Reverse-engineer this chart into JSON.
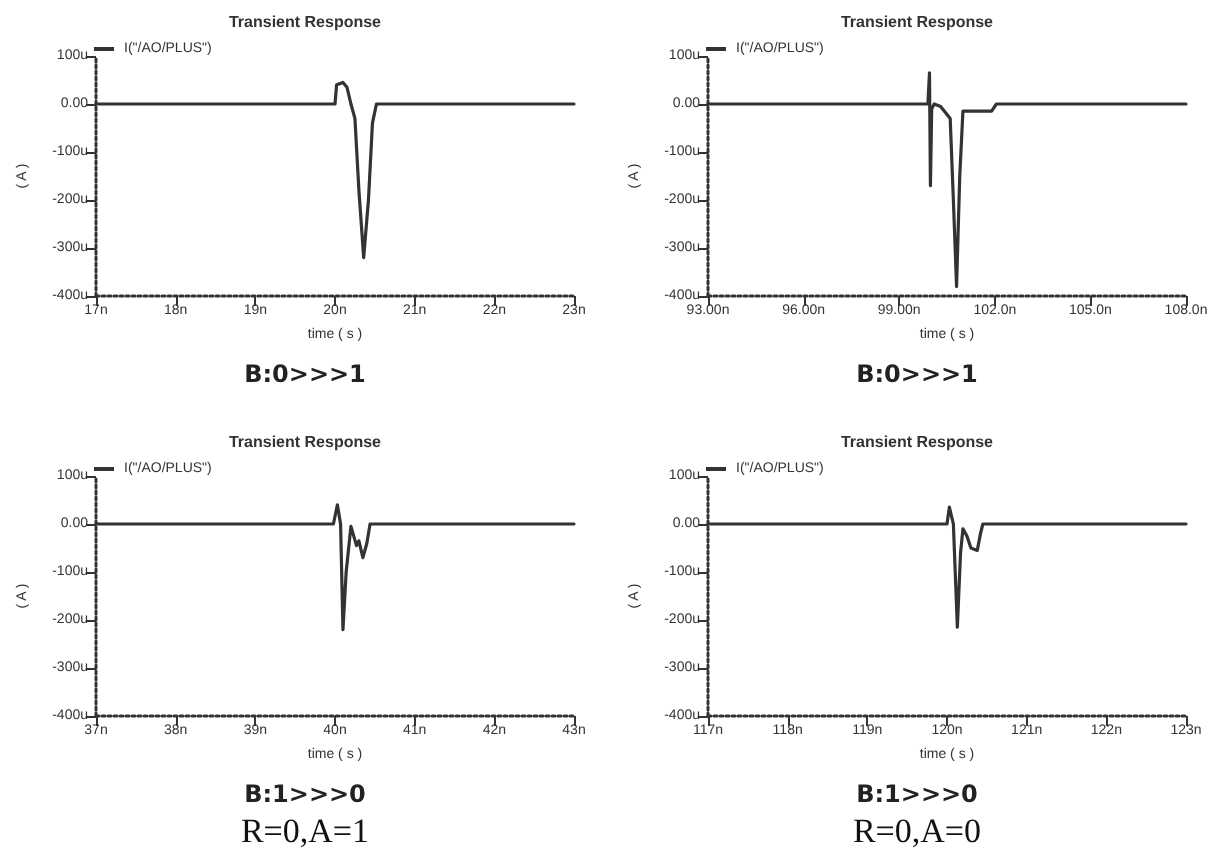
{
  "chart_data": [
    {
      "type": "line",
      "title": "Transient Response",
      "xlabel": "time ( s )",
      "ylabel": "( A )",
      "legend": "top left",
      "line_style": "solid",
      "xlim": [
        17,
        23
      ],
      "xticks": [
        {
          "value": 17,
          "label": "17n"
        },
        {
          "value": 18,
          "label": "18n"
        },
        {
          "value": 19,
          "label": "19n"
        },
        {
          "value": 20,
          "label": "20n"
        },
        {
          "value": 21,
          "label": "21n"
        },
        {
          "value": 22,
          "label": "22n"
        },
        {
          "value": 23,
          "label": "23n"
        }
      ],
      "ylim": [
        -400,
        100
      ],
      "yticks": [
        {
          "value": 100,
          "label": "100u"
        },
        {
          "value": 0,
          "label": "0.00"
        },
        {
          "value": -100,
          "label": "-100u"
        },
        {
          "value": -200,
          "label": "-200u"
        },
        {
          "value": -300,
          "label": "-300u"
        },
        {
          "value": -400,
          "label": "-400u"
        }
      ],
      "series": [
        {
          "name": "I(\"/AO/PLUS\")",
          "color": "#333333",
          "x": [
            17,
            20,
            20.02,
            20.1,
            20.15,
            20.2,
            20.25,
            20.3,
            20.36,
            20.42,
            20.47,
            20.52,
            23
          ],
          "values": [
            0,
            0,
            40,
            45,
            35,
            0,
            -30,
            -180,
            -320,
            -200,
            -40,
            0,
            0
          ]
        }
      ],
      "annotations": [
        "B:0>>>1"
      ]
    },
    {
      "type": "line",
      "title": "Transient Response",
      "xlabel": "time ( s )",
      "ylabel": "( A )",
      "legend": "top left",
      "line_style": "solid",
      "xlim": [
        93,
        108
      ],
      "xticks": [
        {
          "value": 93,
          "label": "93.00n"
        },
        {
          "value": 96,
          "label": "96.00n"
        },
        {
          "value": 99,
          "label": "99.00n"
        },
        {
          "value": 102,
          "label": "102.0n"
        },
        {
          "value": 105,
          "label": "105.0n"
        },
        {
          "value": 108,
          "label": "108.0n"
        }
      ],
      "ylim": [
        -400,
        100
      ],
      "yticks": [
        {
          "value": 100,
          "label": "100u"
        },
        {
          "value": 0,
          "label": "0.00"
        },
        {
          "value": -100,
          "label": "-100u"
        },
        {
          "value": -200,
          "label": "-200u"
        },
        {
          "value": -300,
          "label": "-300u"
        },
        {
          "value": -400,
          "label": "-400u"
        }
      ],
      "series": [
        {
          "name": "I(\"/AO/PLUS\")",
          "color": "#333333",
          "x": [
            93,
            99.9,
            99.95,
            99.98,
            100.02,
            100.1,
            100.3,
            100.6,
            100.7,
            100.8,
            100.9,
            101,
            101.9,
            102.05,
            108
          ],
          "values": [
            0,
            0,
            65,
            -170,
            -10,
            0,
            -5,
            -30,
            -200,
            -380,
            -150,
            -15,
            -15,
            0,
            0
          ]
        }
      ],
      "annotations": [
        "B:0>>>1"
      ]
    },
    {
      "type": "line",
      "title": "Transient Response",
      "xlabel": "time ( s )",
      "ylabel": "( A )",
      "legend": "top left",
      "line_style": "solid",
      "xlim": [
        37,
        43
      ],
      "xticks": [
        {
          "value": 37,
          "label": "37n"
        },
        {
          "value": 38,
          "label": "38n"
        },
        {
          "value": 39,
          "label": "39n"
        },
        {
          "value": 40,
          "label": "40n"
        },
        {
          "value": 41,
          "label": "41n"
        },
        {
          "value": 42,
          "label": "42n"
        },
        {
          "value": 43,
          "label": "43n"
        }
      ],
      "ylim": [
        -400,
        100
      ],
      "yticks": [
        {
          "value": 100,
          "label": "100u"
        },
        {
          "value": 0,
          "label": "0.00"
        },
        {
          "value": -100,
          "label": "-100u"
        },
        {
          "value": -200,
          "label": "-200u"
        },
        {
          "value": -300,
          "label": "-300u"
        },
        {
          "value": -400,
          "label": "-400u"
        }
      ],
      "series": [
        {
          "name": "I(\"/AO/PLUS\")",
          "color": "#333333",
          "x": [
            37,
            39.98,
            40.03,
            40.07,
            40.1,
            40.14,
            40.2,
            40.27,
            40.3,
            40.35,
            40.4,
            40.44,
            43
          ],
          "values": [
            0,
            0,
            40,
            0,
            -220,
            -100,
            -5,
            -45,
            -35,
            -70,
            -40,
            0,
            0
          ]
        }
      ],
      "annotations": [
        "B:1>>>0",
        "R=0,A=1"
      ]
    },
    {
      "type": "line",
      "title": "Transient Response",
      "xlabel": "time ( s )",
      "ylabel": "( A )",
      "legend": "top left",
      "line_style": "solid",
      "xlim": [
        117,
        123
      ],
      "xticks": [
        {
          "value": 117,
          "label": "117n"
        },
        {
          "value": 118,
          "label": "118n"
        },
        {
          "value": 119,
          "label": "119n"
        },
        {
          "value": 120,
          "label": "120n"
        },
        {
          "value": 121,
          "label": "121n"
        },
        {
          "value": 122,
          "label": "122n"
        },
        {
          "value": 123,
          "label": "123n"
        }
      ],
      "ylim": [
        -400,
        100
      ],
      "yticks": [
        {
          "value": 100,
          "label": "100u"
        },
        {
          "value": 0,
          "label": "0.00"
        },
        {
          "value": -100,
          "label": "-100u"
        },
        {
          "value": -200,
          "label": "-200u"
        },
        {
          "value": -300,
          "label": "-300u"
        },
        {
          "value": -400,
          "label": "-400u"
        }
      ],
      "series": [
        {
          "name": "I(\"/AO/PLUS\")",
          "color": "#333333",
          "x": [
            117,
            120,
            120.03,
            120.08,
            120.13,
            120.17,
            120.2,
            120.25,
            120.3,
            120.38,
            120.42,
            120.45,
            123
          ],
          "values": [
            0,
            0,
            35,
            0,
            -215,
            -60,
            -10,
            -25,
            -50,
            -55,
            -20,
            0,
            0
          ]
        }
      ],
      "annotations": [
        "B:1>>>0",
        "R=0,A=0"
      ]
    }
  ]
}
